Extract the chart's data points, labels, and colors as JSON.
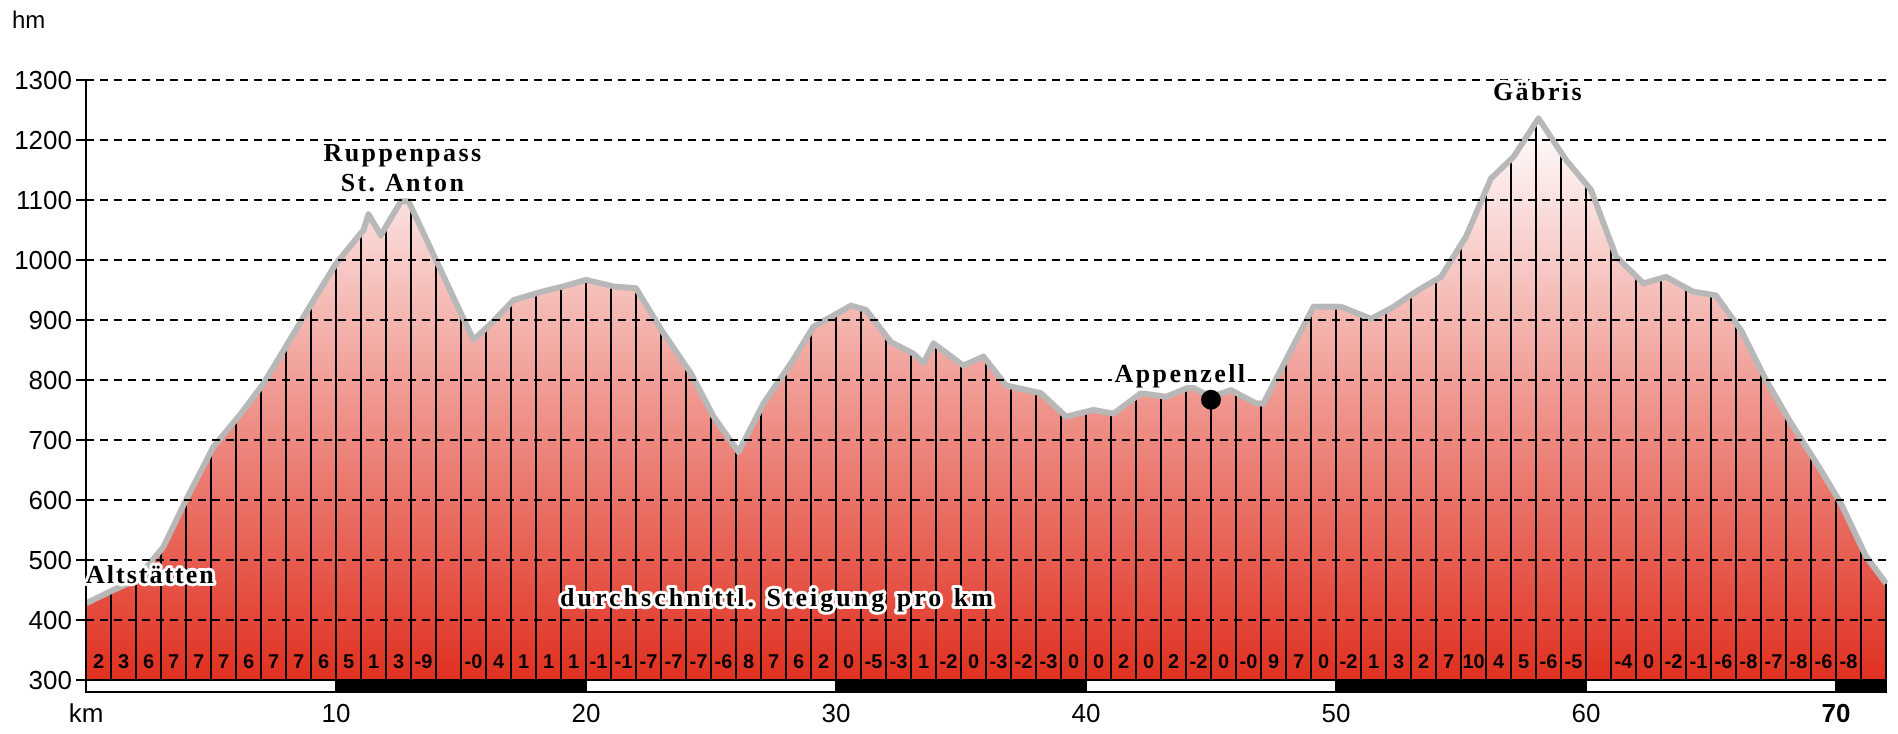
{
  "chart_data": {
    "type": "area",
    "xlabel": "km",
    "ylabel": "hm",
    "series": [
      {
        "color": "#e03020",
        "x": [
          0,
          1.1,
          2.0,
          3.1,
          4.0,
          5.1,
          6.2,
          7.1,
          8.0,
          9.1,
          10.0,
          11.1,
          11.3,
          11.8,
          12.0,
          12.6,
          12.9,
          14.0,
          15.0,
          15.5,
          16.2,
          17.1,
          18.2,
          19.1,
          20.0,
          21.1,
          22.0,
          23.1,
          24.2,
          25.1,
          26.1,
          27.1,
          28.2,
          29.1,
          30.6,
          31.2,
          32.2,
          33.1,
          33.5,
          33.9,
          35.1,
          35.9,
          36.8,
          38.2,
          39.2,
          40.3,
          41.1,
          42.2,
          43.2,
          44.2,
          45.0,
          45.8,
          46.8,
          47.1,
          48.2,
          49.1,
          50.2,
          51.4,
          52.3,
          53.3,
          54.2,
          55.2,
          56.2,
          57.1,
          58.1,
          59.2,
          60.2,
          61.2,
          62.3,
          63.2,
          64.3,
          65.2,
          66.2,
          67.2,
          68.2,
          69.3,
          70.2,
          71.2,
          72.0
        ],
        "values": [
          428,
          450,
          467,
          522,
          600,
          689,
          744,
          794,
          856,
          933,
          994,
          1050,
          1076,
          1041,
          1056,
          1098,
          1098,
          1000,
          911,
          867,
          894,
          933,
          947,
          956,
          967,
          956,
          953,
          878,
          811,
          739,
          680,
          761,
          828,
          889,
          924,
          917,
          863,
          844,
          828,
          861,
          824,
          839,
          791,
          778,
          739,
          750,
          744,
          778,
          772,
          789,
          772,
          783,
          761,
          761,
          850,
          922,
          922,
          902,
          922,
          950,
          972,
          1039,
          1136,
          1172,
          1236,
          1167,
          1117,
          1006,
          961,
          972,
          947,
          941,
          883,
          800,
          728,
          656,
          594,
          506,
          461
        ]
      }
    ],
    "xlim": [
      0,
      72
    ],
    "xticks": [
      10,
      20,
      30,
      40,
      50,
      60,
      70
    ],
    "ylim": [
      300,
      1300
    ],
    "yticks": [
      300,
      400,
      500,
      600,
      700,
      800,
      900,
      1000,
      1100,
      1200,
      1300
    ],
    "grid": "y",
    "line_style": "solid",
    "annotations": [
      {
        "text": "Altstätten",
        "x": 0,
        "y": 428
      },
      {
        "text": "Ruppenpass St. Anton",
        "x": 12.7,
        "y": 1098
      },
      {
        "text": "Appenzell",
        "x": 45,
        "y": 767
      },
      {
        "text": "Gäbris",
        "x": 58.1,
        "y": 1236
      },
      "durchschnittl. Steigung pro km",
      "2 3 6 7 7 7 6 7 7 6",
      "5 1 3 -9  -0 4 1 1 1",
      "-1 -1 -7 -7 -7 -6 8 7 6 2",
      "0 -5 -3 1 -2 0 -3 -2 -3 0",
      "0 2 0 2 -2 0 -0 9 7 0",
      "-2 1 3 2 7 10 4 5 -6 -5",
      " -4 0 -2 -1 -6 -8 -7 -8 -6 -8"
    ]
  }
}
